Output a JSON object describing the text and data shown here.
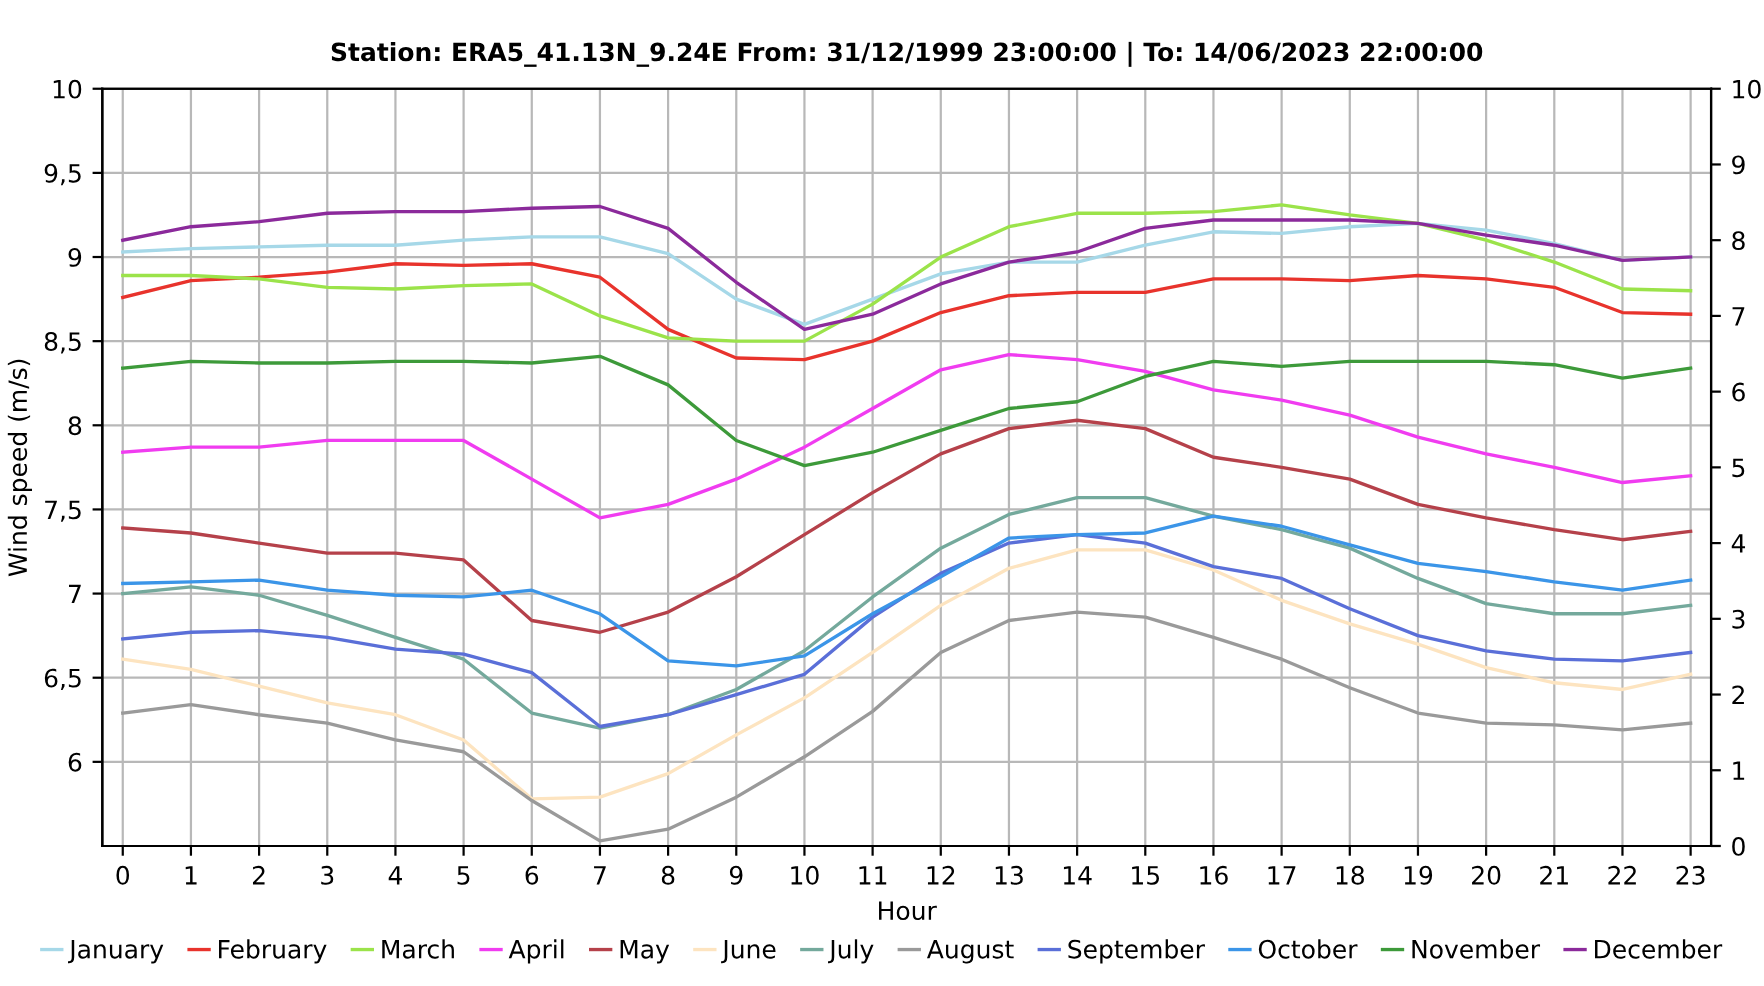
{
  "chart_data": {
    "type": "line",
    "title": "Station: ERA5_41.13N_9.24E From: 31/12/1999 23:00:00 | To: 14/06/2023 22:00:00",
    "xlabel": "Hour",
    "ylabel": "Wind speed (m/s)",
    "x": [
      0,
      1,
      2,
      3,
      4,
      5,
      6,
      7,
      8,
      9,
      10,
      11,
      12,
      13,
      14,
      15,
      16,
      17,
      18,
      19,
      20,
      21,
      22,
      23
    ],
    "xlim": [
      -0.3,
      23.3
    ],
    "xticks": [
      0,
      1,
      2,
      3,
      4,
      5,
      6,
      7,
      8,
      9,
      10,
      11,
      12,
      13,
      14,
      15,
      16,
      17,
      18,
      19,
      20,
      21,
      22,
      23
    ],
    "ylim": [
      5.5,
      10
    ],
    "yticks": [
      {
        "value": 6,
        "label": "6"
      },
      {
        "value": 6.5,
        "label": "6,5"
      },
      {
        "value": 7,
        "label": "7"
      },
      {
        "value": 7.5,
        "label": "7,5"
      },
      {
        "value": 8,
        "label": "8"
      },
      {
        "value": 8.5,
        "label": "8,5"
      },
      {
        "value": 9,
        "label": "9"
      },
      {
        "value": 9.5,
        "label": "9,5"
      },
      {
        "value": 10,
        "label": "10"
      }
    ],
    "y2lim": [
      0,
      10
    ],
    "y2ticks": [
      0,
      1,
      2,
      3,
      4,
      5,
      6,
      7,
      8,
      9,
      10
    ],
    "grid": true,
    "legend": "bottom",
    "marker": "none",
    "line_style": "solid",
    "series": [
      {
        "name": "January",
        "color": "#a6d8e8",
        "values": [
          9.03,
          9.05,
          9.06,
          9.07,
          9.07,
          9.1,
          9.12,
          9.12,
          9.02,
          8.75,
          8.6,
          8.75,
          8.9,
          8.97,
          8.97,
          9.07,
          9.15,
          9.14,
          9.18,
          9.2,
          9.16,
          9.08,
          8.98,
          9.0
        ]
      },
      {
        "name": "February",
        "color": "#e8332c",
        "values": [
          8.76,
          8.86,
          8.88,
          8.91,
          8.96,
          8.95,
          8.96,
          8.88,
          8.57,
          8.4,
          8.39,
          8.5,
          8.67,
          8.77,
          8.79,
          8.79,
          8.87,
          8.87,
          8.86,
          8.89,
          8.87,
          8.82,
          8.67,
          8.66
        ]
      },
      {
        "name": "March",
        "color": "#9be34a",
        "values": [
          8.89,
          8.89,
          8.87,
          8.82,
          8.81,
          8.83,
          8.84,
          8.65,
          8.52,
          8.5,
          8.5,
          8.72,
          9.0,
          9.18,
          9.26,
          9.26,
          9.27,
          9.31,
          9.25,
          9.2,
          9.1,
          8.97,
          8.81,
          8.8
        ]
      },
      {
        "name": "April",
        "color": "#f03cf0",
        "values": [
          7.84,
          7.87,
          7.87,
          7.91,
          7.91,
          7.91,
          7.68,
          7.45,
          7.53,
          7.68,
          7.87,
          8.1,
          8.33,
          8.42,
          8.39,
          8.32,
          8.21,
          8.15,
          8.06,
          7.93,
          7.83,
          7.75,
          7.66,
          7.7
        ]
      },
      {
        "name": "May",
        "color": "#b5414a",
        "values": [
          7.39,
          7.36,
          7.3,
          7.24,
          7.24,
          7.2,
          6.84,
          6.77,
          6.89,
          7.1,
          7.35,
          7.6,
          7.83,
          7.98,
          8.03,
          7.98,
          7.81,
          7.75,
          7.68,
          7.53,
          7.45,
          7.38,
          7.32,
          7.37
        ]
      },
      {
        "name": "June",
        "color": "#fde4c0",
        "values": [
          6.61,
          6.55,
          6.45,
          6.35,
          6.28,
          6.13,
          5.78,
          5.79,
          5.93,
          6.16,
          6.38,
          6.65,
          6.93,
          7.15,
          7.26,
          7.26,
          7.14,
          6.96,
          6.82,
          6.7,
          6.56,
          6.47,
          6.43,
          6.52
        ]
      },
      {
        "name": "July",
        "color": "#74a99c",
        "values": [
          7.0,
          7.04,
          6.99,
          6.87,
          6.74,
          6.61,
          6.29,
          6.2,
          6.28,
          6.43,
          6.66,
          6.98,
          7.27,
          7.47,
          7.57,
          7.57,
          7.46,
          7.38,
          7.27,
          7.09,
          6.94,
          6.88,
          6.88,
          6.93
        ]
      },
      {
        "name": "August",
        "color": "#9a9a9a",
        "values": [
          6.29,
          6.34,
          6.28,
          6.23,
          6.13,
          6.06,
          5.77,
          5.53,
          5.6,
          5.79,
          6.03,
          6.3,
          6.65,
          6.84,
          6.89,
          6.86,
          6.74,
          6.61,
          6.44,
          6.29,
          6.23,
          6.22,
          6.19,
          6.23
        ]
      },
      {
        "name": "September",
        "color": "#5a6fd8",
        "values": [
          6.73,
          6.77,
          6.78,
          6.74,
          6.67,
          6.64,
          6.53,
          6.21,
          6.28,
          6.4,
          6.52,
          6.86,
          7.12,
          7.3,
          7.35,
          7.3,
          7.16,
          7.09,
          6.91,
          6.75,
          6.66,
          6.61,
          6.6,
          6.65
        ]
      },
      {
        "name": "October",
        "color": "#3b95e8",
        "values": [
          7.06,
          7.07,
          7.08,
          7.02,
          6.99,
          6.98,
          7.02,
          6.88,
          6.6,
          6.57,
          6.63,
          6.88,
          7.1,
          7.33,
          7.35,
          7.36,
          7.46,
          7.4,
          7.29,
          7.18,
          7.13,
          7.07,
          7.02,
          7.08
        ]
      },
      {
        "name": "November",
        "color": "#3d9a3a",
        "values": [
          8.34,
          8.38,
          8.37,
          8.37,
          8.38,
          8.38,
          8.37,
          8.41,
          8.24,
          7.91,
          7.76,
          7.84,
          7.97,
          8.1,
          8.14,
          8.29,
          8.38,
          8.35,
          8.38,
          8.38,
          8.38,
          8.36,
          8.28,
          8.34
        ]
      },
      {
        "name": "December",
        "color": "#8b2a9b",
        "values": [
          9.1,
          9.18,
          9.21,
          9.26,
          9.27,
          9.27,
          9.29,
          9.3,
          9.17,
          8.85,
          8.57,
          8.66,
          8.84,
          8.97,
          9.03,
          9.17,
          9.22,
          9.22,
          9.22,
          9.2,
          9.13,
          9.07,
          8.98,
          9.0
        ]
      }
    ]
  }
}
